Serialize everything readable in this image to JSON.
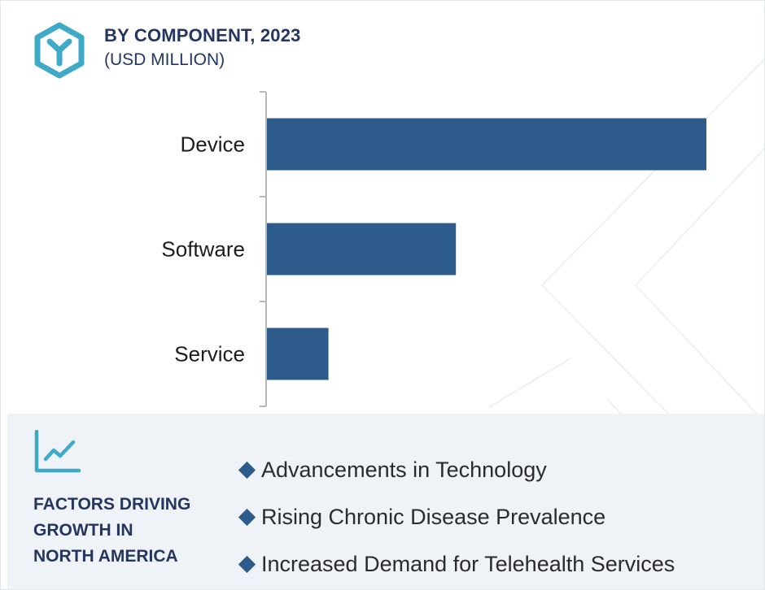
{
  "header": {
    "title": "BY COMPONENT, 2023",
    "subtitle": "(USD MILLION)"
  },
  "icons": {
    "logo": "hexagon-y-logo",
    "growth": "line-chart-trend-icon",
    "bullet": "diamond-bullet-icon"
  },
  "colors": {
    "bar": "#2d5b8b",
    "heading": "#24355e",
    "logo": "#3fa9c8",
    "panel": "#eff2f6"
  },
  "chart_data": {
    "type": "bar",
    "orientation": "horizontal",
    "categories": [
      "Device",
      "Software",
      "Service"
    ],
    "values": [
      100,
      43,
      14
    ],
    "value_note": "",
    "xlabel": "",
    "ylabel": "",
    "xlim": [
      0,
      110
    ],
    "grid": false,
    "legend": "none"
  },
  "factors": {
    "heading": "FACTORS DRIVING\nGROWTH IN\nNORTH AMERICA",
    "items": [
      "Advancements in Technology",
      "Rising Chronic Disease Prevalence",
      "Increased Demand for Telehealth Services"
    ]
  }
}
